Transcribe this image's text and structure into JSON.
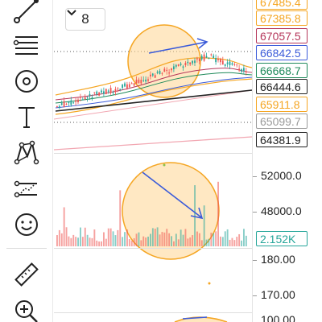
{
  "pane_toggle": {
    "icon": "chevron-down-icon",
    "count": "8"
  },
  "toolbar": {
    "tools": [
      {
        "name": "trend-line-tool",
        "icon": "trend-line-icon"
      },
      {
        "name": "fib-retracement-tool",
        "icon": "horizontal-lines-icon"
      },
      {
        "name": "brush-tool",
        "icon": "circle-target-icon"
      },
      {
        "name": "text-tool",
        "icon": "text-t-icon"
      },
      {
        "name": "pattern-tool",
        "icon": "xabcd-pattern-icon"
      },
      {
        "name": "prediction-tool",
        "icon": "forecast-icon"
      },
      {
        "name": "icons-tool",
        "icon": "smiley-icon"
      },
      {
        "name": "measure-tool",
        "icon": "ruler-icon"
      },
      {
        "name": "zoom-tool",
        "icon": "zoom-in-icon"
      }
    ]
  },
  "price_axis": {
    "tags": [
      {
        "label": "67485.4",
        "color": "#f5a623",
        "filled": false
      },
      {
        "label": "67385.8",
        "color": "#f5a623",
        "filled": false
      },
      {
        "label": "67057.5",
        "color": "#b5365a",
        "filled": false
      },
      {
        "label": "66842.5",
        "color": "#3b5bd9",
        "filled": false
      },
      {
        "label": "66668.7",
        "color": "#1f8a5b",
        "filled": false
      },
      {
        "label": "66444.6",
        "color": "#222222",
        "filled": false
      },
      {
        "label": "65911.8",
        "color": "#f5a623",
        "filled": false
      },
      {
        "label": "65099.7",
        "color": "#9a9a9a",
        "filled": false
      },
      {
        "label": "64381.9",
        "color": "#222222",
        "filled": false
      }
    ],
    "volume_ticks": [
      "52000.0",
      "48000.0"
    ],
    "volume_tag": {
      "label": "2.152K",
      "color": "#26a69a"
    },
    "rsi_ticks": [
      "180.00",
      "170.00"
    ],
    "bottom_tick": "100.00"
  },
  "colors": {
    "up": "#26a69a",
    "down": "#ef5350",
    "circle_fill": "#ffd591",
    "circle_stroke": "#f5a623",
    "arrow": "#3b5bd9",
    "band": "#f5a623"
  }
}
